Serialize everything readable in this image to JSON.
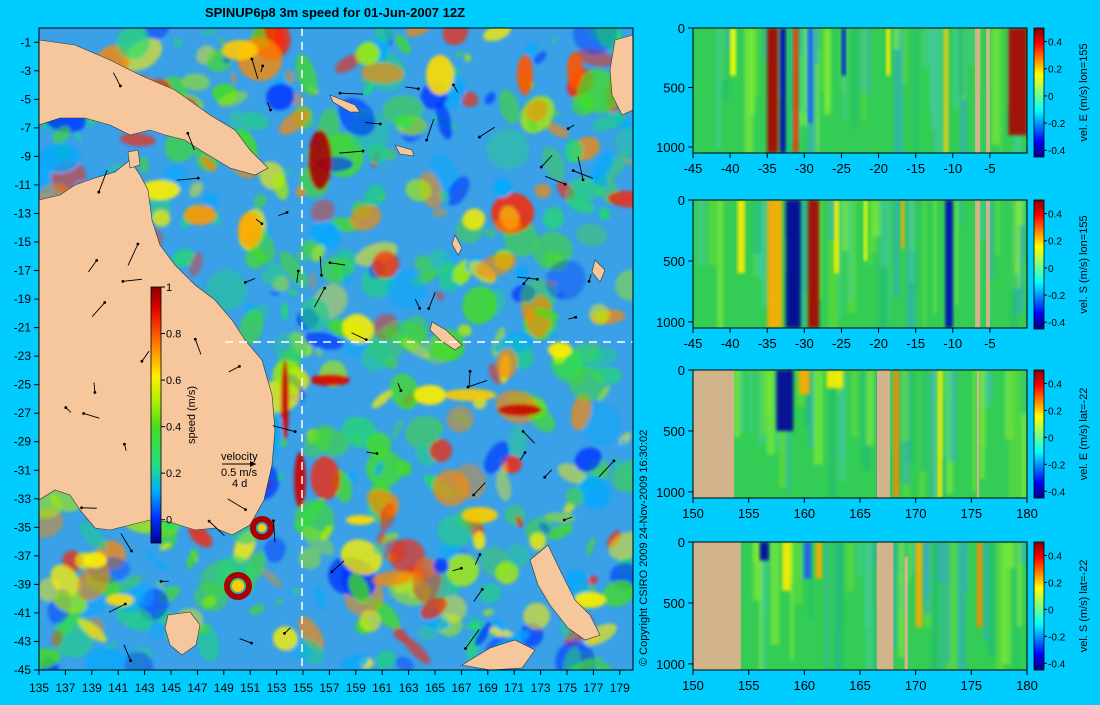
{
  "title": "SPINUP6p8 3m speed for 01-Jun-2007 12Z",
  "copyright": "© Copyright CSIRO 2009   24-Nov-2009 16:30:02",
  "colors": {
    "background": "#00ccff",
    "land": "#f6c79d",
    "section_land": "#d2b48c",
    "ocean_base": "#3aa0e8",
    "guide_line": "#ffffff"
  },
  "colorbar_main": {
    "label": "speed (m/s)",
    "ticks": [
      "1",
      "0.8",
      "0.6",
      "0.4",
      "0.2",
      "0"
    ],
    "tick_values": [
      1,
      0.8,
      0.6,
      0.4,
      0.2,
      0
    ],
    "range": [
      -0.1,
      1
    ]
  },
  "velocity_legend": {
    "title": "velocity",
    "scale": "0.5 m/s",
    "days": "4 d"
  },
  "map": {
    "x_ticks": [
      "135",
      "137",
      "139",
      "141",
      "143",
      "145",
      "147",
      "149",
      "151",
      "153",
      "155",
      "157",
      "159",
      "161",
      "163",
      "165",
      "167",
      "169",
      "171",
      "173",
      "175",
      "177",
      "179"
    ],
    "x_values": [
      135,
      137,
      139,
      141,
      143,
      145,
      147,
      149,
      151,
      153,
      155,
      157,
      159,
      161,
      163,
      165,
      167,
      169,
      171,
      173,
      175,
      177,
      179
    ],
    "y_ticks": [
      "-1",
      "-3",
      "-5",
      "-7",
      "-9",
      "-11",
      "-13",
      "-15",
      "-17",
      "-19",
      "-21",
      "-23",
      "-25",
      "-27",
      "-29",
      "-31",
      "-33",
      "-35",
      "-37",
      "-39",
      "-41",
      "-43",
      "-45"
    ],
    "y_values": [
      -1,
      -3,
      -5,
      -7,
      -9,
      -11,
      -13,
      -15,
      -17,
      -19,
      -21,
      -23,
      -25,
      -27,
      -29,
      -31,
      -33,
      -35,
      -37,
      -39,
      -41,
      -43,
      -45
    ],
    "lon_range": [
      135,
      180
    ],
    "lat_range": [
      0,
      -45
    ],
    "guide_lon": 155,
    "guide_lat": -22
  },
  "chart_data": [
    {
      "type": "heatmap",
      "title": "SPINUP6p8 3m speed for 01-Jun-2007 12Z",
      "xlabel": "",
      "ylabel": "",
      "xlim": [
        135,
        180
      ],
      "ylim": [
        -45,
        0
      ],
      "colorbar_label": "speed (m/s)",
      "colorbar_range": [
        0,
        1
      ],
      "grid": false
    },
    {
      "type": "heatmap",
      "colorbar_label": "vel. E (m/s) lon=155",
      "x_ticks": [
        "-45",
        "-40",
        "-35",
        "-30",
        "-25",
        "-20",
        "-15",
        "-10",
        "-5"
      ],
      "x_values": [
        -45,
        -40,
        -35,
        -30,
        -25,
        -20,
        -15,
        -10,
        -5
      ],
      "y_ticks": [
        "0",
        "500",
        "1000"
      ],
      "y_values": [
        0,
        500,
        1000
      ],
      "xlim": [
        -45,
        0
      ],
      "ylim": [
        1050,
        0
      ],
      "cbar_ticks": [
        "0.4",
        "0.2",
        "0",
        "-0.2",
        "-0.4"
      ],
      "cbar_values": [
        0.4,
        0.2,
        0,
        -0.2,
        -0.4
      ],
      "grid": false
    },
    {
      "type": "heatmap",
      "colorbar_label": "vel. S (m/s) lon=155",
      "x_ticks": [
        "-45",
        "-40",
        "-35",
        "-30",
        "-25",
        "-20",
        "-15",
        "-10",
        "-5"
      ],
      "x_values": [
        -45,
        -40,
        -35,
        -30,
        -25,
        -20,
        -15,
        -10,
        -5
      ],
      "y_ticks": [
        "0",
        "500",
        "1000"
      ],
      "y_values": [
        0,
        500,
        1000
      ],
      "xlim": [
        -45,
        0
      ],
      "ylim": [
        1050,
        0
      ],
      "cbar_ticks": [
        "0.4",
        "0.2",
        "0",
        "-0.2",
        "-0.4"
      ],
      "cbar_values": [
        0.4,
        0.2,
        0,
        -0.2,
        -0.4
      ],
      "grid": false
    },
    {
      "type": "heatmap",
      "colorbar_label": "vel. E (m/s) lat=-22",
      "x_ticks": [
        "150",
        "155",
        "160",
        "165",
        "170",
        "175",
        "180"
      ],
      "x_values": [
        150,
        155,
        160,
        165,
        170,
        175,
        180
      ],
      "y_ticks": [
        "0",
        "500",
        "1000"
      ],
      "y_values": [
        0,
        500,
        1000
      ],
      "xlim": [
        150,
        180
      ],
      "ylim": [
        1050,
        0
      ],
      "cbar_ticks": [
        "0.4",
        "0.2",
        "0",
        "-0.2",
        "-0.4"
      ],
      "cbar_values": [
        0.4,
        0.2,
        0,
        -0.2,
        -0.4
      ],
      "grid": false
    },
    {
      "type": "heatmap",
      "colorbar_label": "vel. S (m/s) lat=-22",
      "x_ticks": [
        "150",
        "155",
        "160",
        "165",
        "170",
        "175",
        "180"
      ],
      "x_values": [
        150,
        155,
        160,
        165,
        170,
        175,
        180
      ],
      "y_ticks": [
        "0",
        "500",
        "1000"
      ],
      "y_values": [
        0,
        500,
        1000
      ],
      "xlim": [
        150,
        180
      ],
      "ylim": [
        1050,
        0
      ],
      "cbar_ticks": [
        "0.4",
        "0.2",
        "0",
        "-0.2",
        "-0.4"
      ],
      "cbar_values": [
        0.4,
        0.2,
        0,
        -0.2,
        -0.4
      ],
      "grid": false
    }
  ]
}
